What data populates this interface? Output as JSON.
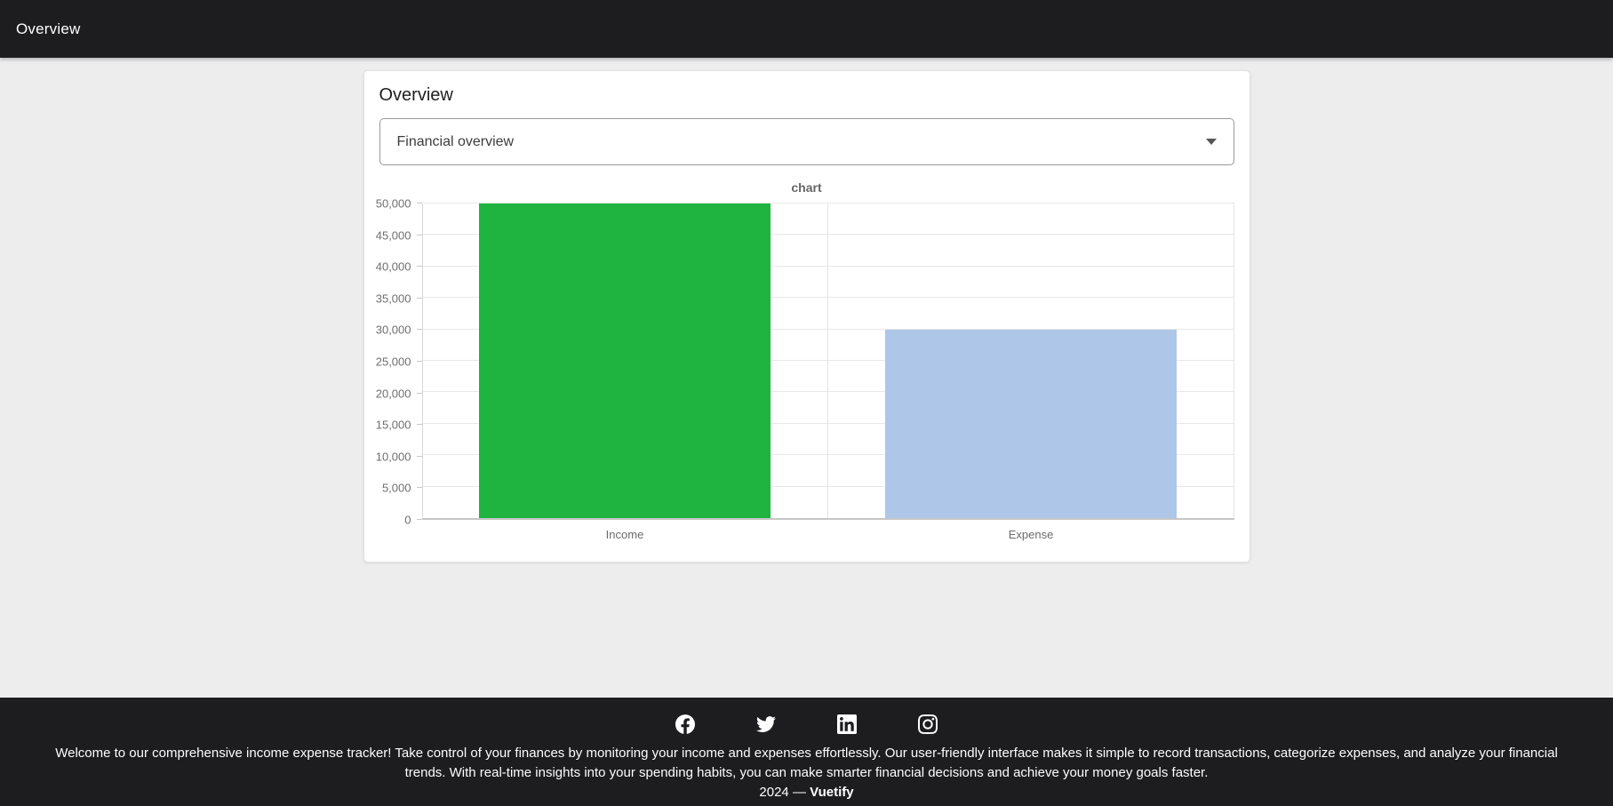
{
  "app_bar": {
    "title": "Overview"
  },
  "card": {
    "title": "Overview",
    "select": {
      "value": "Financial overview"
    }
  },
  "chart_data": {
    "type": "bar",
    "title": "chart",
    "categories": [
      "Income",
      "Expense"
    ],
    "values": [
      50000,
      30000
    ],
    "bar_colors": [
      "#1fb43f",
      "#aec6e8"
    ],
    "ylim": [
      0,
      50000
    ],
    "ytick_step": 5000,
    "ytick_labels": [
      "0",
      "5,000",
      "10,000",
      "15,000",
      "20,000",
      "25,000",
      "30,000",
      "35,000",
      "40,000",
      "45,000",
      "50,000"
    ],
    "xlabel": "",
    "ylabel": "",
    "grid": true,
    "legend_position": "none"
  },
  "footer": {
    "social": [
      {
        "name": "facebook"
      },
      {
        "name": "twitter"
      },
      {
        "name": "linkedin"
      },
      {
        "name": "instagram"
      }
    ],
    "description": "Welcome to our comprehensive income expense tracker! Take control of your finances by monitoring your income and expenses effortlessly. Our user-friendly interface makes it simple to record transactions, categorize expenses, and analyze your financial trends. With real-time insights into your spending habits, you can make smarter financial decisions and achieve your money goals faster.",
    "copyright_prefix": "2024 —",
    "copyright_brand": "Vuetify"
  },
  "colors": {
    "app_bar_bg": "#1d1d1f",
    "page_bg": "#ededee",
    "card_bg": "#ffffff",
    "income_bar": "#1fb43f",
    "expense_bar": "#aec6e8"
  }
}
